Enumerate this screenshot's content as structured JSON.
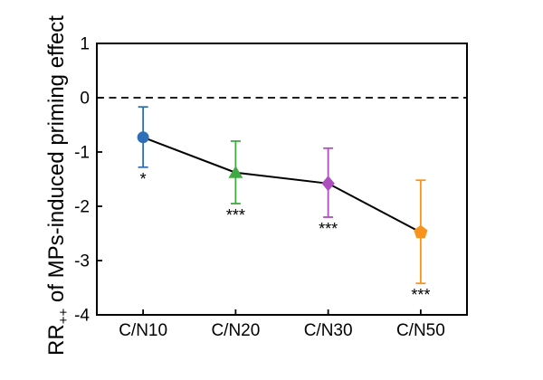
{
  "figure": {
    "background_color": "#ffffff",
    "axis_color": "#000000"
  },
  "chart_data": {
    "type": "line",
    "title": "",
    "xlabel": "",
    "ylabel": "RR++ of MPs-induced priming effect",
    "ylabel_parts": {
      "base": "RR",
      "sub": "++",
      "rest": " of MPs-induced priming effect"
    },
    "categories": [
      "C/N10",
      "C/N20",
      "C/N30",
      "C/N50"
    ],
    "series": [
      {
        "name": "MPs-induced priming effect",
        "values": [
          -0.73,
          -1.38,
          -1.58,
          -2.48
        ],
        "error_upper": [
          -0.17,
          -0.8,
          -0.93,
          -1.52
        ],
        "error_lower": [
          -1.28,
          -1.95,
          -2.2,
          -3.42
        ],
        "significance": [
          "*",
          "***",
          "***",
          "***"
        ],
        "marker_shapes": [
          "circle",
          "triangle",
          "diamond",
          "pentagon"
        ],
        "marker_colors": [
          "#2E6FB7",
          "#41A943",
          "#AE4FC0",
          "#F8941D"
        ],
        "line_color": "#000000"
      }
    ],
    "ylim": [
      -4,
      1
    ],
    "yticks": [
      1,
      0,
      -1,
      -2,
      -3,
      -4
    ],
    "ytick_labels": [
      "1",
      "0",
      "-1",
      "-2",
      "-3",
      "-4"
    ],
    "reference_line": {
      "y": 0,
      "style": "dashed",
      "color": "#000000"
    },
    "grid": false,
    "legend": null
  }
}
